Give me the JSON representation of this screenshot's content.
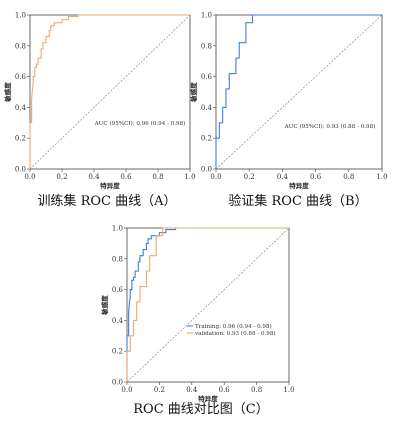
{
  "colors": {
    "training": "#f2a86f",
    "validation": "#3f7ee0",
    "reference": "#777777",
    "frame": "#444444"
  },
  "chart_data": [
    {
      "type": "line",
      "caption": "训练集 ROC 曲线（A）",
      "xlabel": "特异度",
      "ylabel": "敏感度",
      "xlim": [
        0.0,
        1.0
      ],
      "ylim": [
        0.0,
        1.0
      ],
      "ticks": [
        0.0,
        0.2,
        0.4,
        0.6,
        0.8,
        1.0
      ],
      "tick_labels": [
        "0.0",
        "0.2",
        "0.4",
        "0.6",
        "0.8",
        "1.0"
      ],
      "grid": false,
      "annotation": "AUC (95%CI): 0.96 (0.94 - 0.98)",
      "series": [
        {
          "color_key": "training",
          "x": [
            0.0,
            0.0,
            0.01,
            0.01,
            0.015,
            0.02,
            0.02,
            0.03,
            0.03,
            0.04,
            0.04,
            0.05,
            0.05,
            0.07,
            0.07,
            0.08,
            0.08,
            0.1,
            0.1,
            0.12,
            0.12,
            0.13,
            0.13,
            0.15,
            0.15,
            0.2,
            0.2,
            0.24,
            0.24,
            0.3,
            0.3,
            1.0
          ],
          "y": [
            0.0,
            0.3,
            0.3,
            0.45,
            0.52,
            0.55,
            0.6,
            0.6,
            0.66,
            0.66,
            0.68,
            0.68,
            0.72,
            0.72,
            0.78,
            0.78,
            0.82,
            0.82,
            0.86,
            0.86,
            0.9,
            0.9,
            0.93,
            0.93,
            0.95,
            0.95,
            0.97,
            0.97,
            0.99,
            0.99,
            1.0,
            1.0
          ]
        }
      ]
    },
    {
      "type": "line",
      "caption": "验证集 ROC 曲线（B）",
      "xlabel": "特异度",
      "ylabel": "敏感度",
      "xlim": [
        0.0,
        1.0
      ],
      "ylim": [
        0.0,
        1.0
      ],
      "ticks": [
        0.0,
        0.2,
        0.4,
        0.6,
        0.8,
        1.0
      ],
      "tick_labels": [
        "0.0",
        "0.2",
        "0.4",
        "0.6",
        "0.8",
        "1.0"
      ],
      "grid": false,
      "annotation": "AUC (95%CI): 0.93 (0.88 - 0.98)",
      "series": [
        {
          "color_key": "validation",
          "x": [
            0.0,
            0.0,
            0.02,
            0.02,
            0.04,
            0.04,
            0.06,
            0.06,
            0.08,
            0.08,
            0.12,
            0.12,
            0.14,
            0.14,
            0.18,
            0.18,
            0.22,
            0.22,
            1.0
          ],
          "y": [
            0.0,
            0.2,
            0.2,
            0.3,
            0.3,
            0.4,
            0.4,
            0.52,
            0.52,
            0.62,
            0.62,
            0.72,
            0.72,
            0.82,
            0.82,
            0.95,
            0.95,
            1.0,
            1.0
          ]
        }
      ]
    },
    {
      "type": "line",
      "caption": "ROC 曲线对比图（C）",
      "xlabel": "特异度",
      "ylabel": "敏感度",
      "xlim": [
        0.0,
        1.0
      ],
      "ylim": [
        0.0,
        1.0
      ],
      "ticks": [
        0.0,
        0.2,
        0.4,
        0.6,
        0.8,
        1.0
      ],
      "tick_labels": [
        "0.0",
        "0.2",
        "0.4",
        "0.6",
        "0.8",
        "1.0"
      ],
      "grid": false,
      "legend": {
        "position": "bottom-right",
        "entries": [
          {
            "label": "Training: 0.96 (0.94 - 0.98)",
            "color_key": "validation"
          },
          {
            "label": "validation: 0.93 (0.88 - 0.98)",
            "color_key": "training"
          }
        ]
      },
      "series": [
        {
          "color_key": "validation",
          "x": [
            0.0,
            0.0,
            0.01,
            0.01,
            0.015,
            0.02,
            0.02,
            0.03,
            0.03,
            0.04,
            0.04,
            0.05,
            0.05,
            0.07,
            0.07,
            0.08,
            0.08,
            0.1,
            0.1,
            0.12,
            0.12,
            0.13,
            0.13,
            0.15,
            0.15,
            0.2,
            0.2,
            0.24,
            0.24,
            0.3,
            0.3,
            1.0
          ],
          "y": [
            0.0,
            0.3,
            0.3,
            0.45,
            0.52,
            0.55,
            0.6,
            0.6,
            0.66,
            0.66,
            0.68,
            0.68,
            0.72,
            0.72,
            0.78,
            0.78,
            0.82,
            0.82,
            0.86,
            0.86,
            0.9,
            0.9,
            0.93,
            0.93,
            0.95,
            0.95,
            0.97,
            0.97,
            0.99,
            0.99,
            1.0,
            1.0
          ]
        },
        {
          "color_key": "training",
          "x": [
            0.0,
            0.0,
            0.02,
            0.02,
            0.04,
            0.04,
            0.06,
            0.06,
            0.08,
            0.08,
            0.12,
            0.12,
            0.14,
            0.14,
            0.18,
            0.18,
            0.22,
            0.22,
            1.0
          ],
          "y": [
            0.0,
            0.2,
            0.2,
            0.3,
            0.3,
            0.4,
            0.4,
            0.52,
            0.52,
            0.62,
            0.62,
            0.72,
            0.72,
            0.82,
            0.82,
            0.95,
            0.95,
            1.0,
            1.0
          ]
        }
      ]
    }
  ]
}
